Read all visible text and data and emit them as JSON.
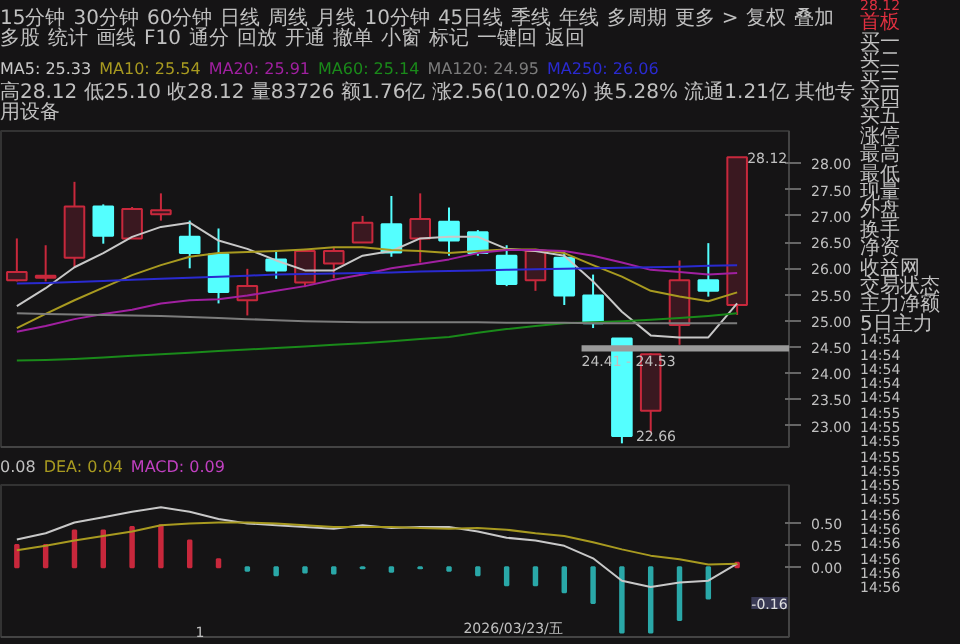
{
  "chart_data": [
    {
      "type": "other",
      "annotations": [
        "15分钟",
        "30分钟",
        "60分钟",
        "日线",
        "周线",
        "月线",
        "10分钟",
        "45日线",
        "季线",
        "年线",
        "多周期",
        "更多 >",
        "复权",
        "叠加",
        "多股",
        "统计",
        "画线",
        "F10",
        "通分",
        "回放",
        "开通",
        "撤单",
        "小窗",
        "标记",
        "一键回",
        "返回"
      ]
    },
    {
      "type": "candlestick",
      "categories": [
        null,
        null,
        null,
        null,
        null,
        null,
        null,
        null,
        null,
        null,
        null,
        null,
        null,
        null,
        null,
        null,
        null,
        null,
        null,
        null,
        null,
        null,
        null,
        null,
        null,
        null
      ],
      "ohlc": [
        [
          25.77,
          26.57,
          25.75,
          25.93
        ],
        [
          25.82,
          26.44,
          25.75,
          25.86
        ],
        [
          26.2,
          27.65,
          26.02,
          27.18
        ],
        [
          27.18,
          27.22,
          26.47,
          26.62
        ],
        [
          26.57,
          27.17,
          26.57,
          27.13
        ],
        [
          27.03,
          27.43,
          26.91,
          27.11
        ],
        [
          26.6,
          26.91,
          26.0,
          26.29
        ],
        [
          26.27,
          26.76,
          25.33,
          25.55
        ],
        [
          25.39,
          25.99,
          25.1,
          25.66
        ],
        [
          26.17,
          26.35,
          25.8,
          25.96
        ],
        [
          25.73,
          26.37,
          25.64,
          26.33
        ],
        [
          26.09,
          26.4,
          25.81,
          26.33
        ],
        [
          26.49,
          27.0,
          26.49,
          26.87
        ],
        [
          26.84,
          27.38,
          26.22,
          26.3
        ],
        [
          26.57,
          27.43,
          26.11,
          26.94
        ],
        [
          26.89,
          27.16,
          26.24,
          26.53
        ],
        [
          26.69,
          26.73,
          26.24,
          26.29
        ],
        [
          26.24,
          26.44,
          25.66,
          25.7
        ],
        [
          25.77,
          26.37,
          25.57,
          26.33
        ],
        [
          26.2,
          26.33,
          25.3,
          25.48
        ],
        [
          25.48,
          25.88,
          24.86,
          24.95
        ],
        [
          24.66,
          24.66,
          22.66,
          22.8
        ],
        [
          23.28,
          24.38,
          22.85,
          24.36
        ],
        [
          24.92,
          26.15,
          24.54,
          25.77
        ],
        [
          25.77,
          26.48,
          25.46,
          25.57
        ],
        [
          25.3,
          28.12,
          25.11,
          28.12
        ]
      ],
      "colors": [
        "#c8283c",
        "#c8283c",
        "#c8283c",
        "#54ffff",
        "#c8283c",
        "#c8283c",
        "#54ffff",
        "#54ffff",
        "#c8283c",
        "#54ffff",
        "#c8283c",
        "#c8283c",
        "#c8283c",
        "#54ffff",
        "#c8283c",
        "#54ffff",
        "#54ffff",
        "#54ffff",
        "#c8283c",
        "#54ffff",
        "#54ffff",
        "#54ffff",
        "#c8283c",
        "#c8283c",
        "#54ffff",
        "#c8283c"
      ],
      "series": [
        {
          "name": "MA5: 25.33",
          "type": "line",
          "color": "#c8c8c8",
          "values": [
            25.28,
            25.62,
            26.02,
            26.29,
            26.6,
            26.79,
            26.87,
            26.53,
            26.37,
            26.15,
            25.96,
            25.96,
            26.24,
            26.33,
            26.57,
            26.6,
            26.6,
            26.37,
            26.33,
            26.24,
            25.75,
            25.17,
            24.72,
            24.68,
            24.68,
            25.33
          ]
        },
        {
          "name": "MA10: 25.54",
          "type": "line",
          "color": "#a89a20",
          "values": [
            24.86,
            25.13,
            25.39,
            25.63,
            25.87,
            26.06,
            26.22,
            26.29,
            26.31,
            26.33,
            26.36,
            26.4,
            26.4,
            26.35,
            26.33,
            26.29,
            26.33,
            26.36,
            26.36,
            26.29,
            26.06,
            25.84,
            25.57,
            25.46,
            25.37,
            25.54
          ]
        },
        {
          "name": "MA20: 25.91",
          "type": "line",
          "color": "#a020a0",
          "values": [
            24.79,
            24.9,
            25.03,
            25.13,
            25.21,
            25.33,
            25.39,
            25.41,
            25.48,
            25.57,
            25.66,
            25.78,
            25.88,
            26.0,
            26.08,
            26.17,
            26.29,
            26.35,
            26.35,
            26.33,
            26.24,
            26.11,
            25.97,
            25.93,
            25.88,
            25.91
          ]
        },
        {
          "name": "MA60: 25.14",
          "type": "line",
          "color": "#1a8a1a",
          "values": [
            24.24,
            24.25,
            24.27,
            24.3,
            24.33,
            24.36,
            24.39,
            24.42,
            24.45,
            24.48,
            24.51,
            24.54,
            24.57,
            24.61,
            24.65,
            24.69,
            24.77,
            24.84,
            24.9,
            24.95,
            24.97,
            24.99,
            25.02,
            25.05,
            25.09,
            25.14
          ]
        },
        {
          "name": "MA120: 24.95",
          "type": "line",
          "color": "#7c7c7c",
          "values": [
            25.14,
            25.13,
            25.12,
            25.11,
            25.1,
            25.09,
            25.07,
            25.05,
            25.03,
            25.01,
            24.99,
            24.98,
            24.97,
            24.97,
            24.97,
            24.97,
            24.97,
            24.96,
            24.96,
            24.96,
            24.95,
            24.95,
            24.95,
            24.95,
            24.95,
            24.95
          ]
        },
        {
          "name": "MA250: 26.06",
          "type": "line",
          "color": "#2a2ad0",
          "values": [
            25.71,
            25.72,
            25.74,
            25.76,
            25.78,
            25.8,
            25.82,
            25.84,
            25.86,
            25.88,
            25.89,
            25.9,
            25.91,
            25.92,
            25.94,
            25.95,
            25.96,
            25.97,
            25.98,
            25.99,
            26.0,
            26.01,
            26.02,
            26.03,
            26.05,
            26.06
          ]
        }
      ],
      "subtitle": "高28.12 低25.10 收28.12 量83726 额1.76亿 涨2.56(10.02%) 换5.28% 流通1.21亿 其他专用设备",
      "annotations": [
        "28.12",
        "22.66"
      ],
      "bands": [
        {
          "axis": "y",
          "from": 24.41,
          "to": 24.53,
          "label": "24.41 - 24.53",
          "color": "#9a9a9a"
        }
      ],
      "ylim": [
        22.59,
        28.62
      ],
      "yticks": [
        {
          "value": 23,
          "label": "23.00"
        },
        {
          "value": 23.5,
          "label": "23.50"
        },
        {
          "value": 24,
          "label": "24.00"
        },
        {
          "value": 24.5,
          "label": "24.50"
        },
        {
          "value": 25,
          "label": "25.00"
        },
        {
          "value": 25.5,
          "label": "25.50"
        },
        {
          "value": 26,
          "label": "26.00"
        },
        {
          "value": 26.5,
          "label": "26.50"
        },
        {
          "value": 27,
          "label": "27.00"
        },
        {
          "value": 27.5,
          "label": "27.50"
        },
        {
          "value": 28,
          "label": "28.00"
        }
      ],
      "tick_labels": "y",
      "legend": "top left"
    },
    {
      "type": "bar",
      "categories": [
        null,
        null,
        null,
        null,
        null,
        null,
        null,
        null,
        null,
        null,
        null,
        null,
        null,
        null,
        null,
        null,
        null,
        null,
        null,
        null,
        null,
        null,
        null,
        null,
        null,
        null
      ],
      "series": [
        {
          "type": "bar",
          "colors": [
            "#c8283c",
            "#c8283c",
            "#c8283c",
            "#c8283c",
            "#c8283c",
            "#c8283c",
            "#c8283c",
            "#c8283c",
            "#2aa8a8",
            "#2aa8a8",
            "#2aa8a8",
            "#2aa8a8",
            "#2aa8a8",
            "#2aa8a8",
            "#2aa8a8",
            "#2aa8a8",
            "#2aa8a8",
            "#2aa8a8",
            "#2aa8a8",
            "#2aa8a8",
            "#2aa8a8",
            "#2aa8a8",
            "#2aa8a8",
            "#2aa8a8",
            "#2aa8a8",
            "#c8283c"
          ],
          "values": [
            0.25,
            0.25,
            0.41,
            0.41,
            0.45,
            0.47,
            0.3,
            0.09,
            -0.04,
            -0.09,
            -0.06,
            -0.07,
            -0.01,
            -0.05,
            -0.01,
            -0.04,
            -0.09,
            -0.2,
            -0.2,
            -0.28,
            -0.4,
            -0.73,
            -0.73,
            -0.59,
            -0.35,
            0.05
          ]
        },
        {
          "type": "line",
          "color": "#c8c8c8",
          "values": [
            0.31,
            0.38,
            0.5,
            0.56,
            0.62,
            0.67,
            0.62,
            0.54,
            0.49,
            0.47,
            0.45,
            0.43,
            0.47,
            0.44,
            0.45,
            0.45,
            0.4,
            0.33,
            0.3,
            0.24,
            0.1,
            -0.15,
            -0.22,
            -0.17,
            -0.15,
            0.04
          ]
        },
        {
          "type": "line",
          "color": "#a89a20",
          "values": [
            0.19,
            0.24,
            0.3,
            0.35,
            0.4,
            0.47,
            0.49,
            0.5,
            0.5,
            0.49,
            0.47,
            0.45,
            0.45,
            0.45,
            0.44,
            0.43,
            0.44,
            0.42,
            0.38,
            0.35,
            0.28,
            0.2,
            0.13,
            0.09,
            0.03,
            0.04
          ]
        }
      ],
      "annotations": [
        "0.08",
        "DEA: 0.04",
        "MACD: 0.09",
        "1",
        "2026/03/23/五",
        "-0.16"
      ],
      "ylim": [
        -0.78,
        0.92
      ],
      "yticks": [
        {
          "value": 0,
          "label": "0.00"
        },
        {
          "value": 0.25,
          "label": "0.25"
        },
        {
          "value": 0.5,
          "label": "0.50"
        }
      ],
      "tick_labels": "y",
      "grid": false
    },
    {
      "type": "other",
      "annotations": [
        "28.12",
        "首板",
        "买一",
        "买二",
        "买三",
        "买四",
        "买五",
        "涨停",
        "最高",
        "最低",
        "现量",
        "外盘",
        "换手",
        "净资",
        "收益网",
        "交易状态",
        "主力净额",
        "5日主力",
        "14:54",
        "14:54",
        "14:54",
        "14:54",
        "14:54",
        "14:55",
        "14:55",
        "14:55",
        "14:55",
        "14:55",
        "14:55",
        "14:55",
        "14:56",
        "14:56",
        "14:56",
        "14:56",
        "14:56",
        "14:56"
      ]
    }
  ]
}
